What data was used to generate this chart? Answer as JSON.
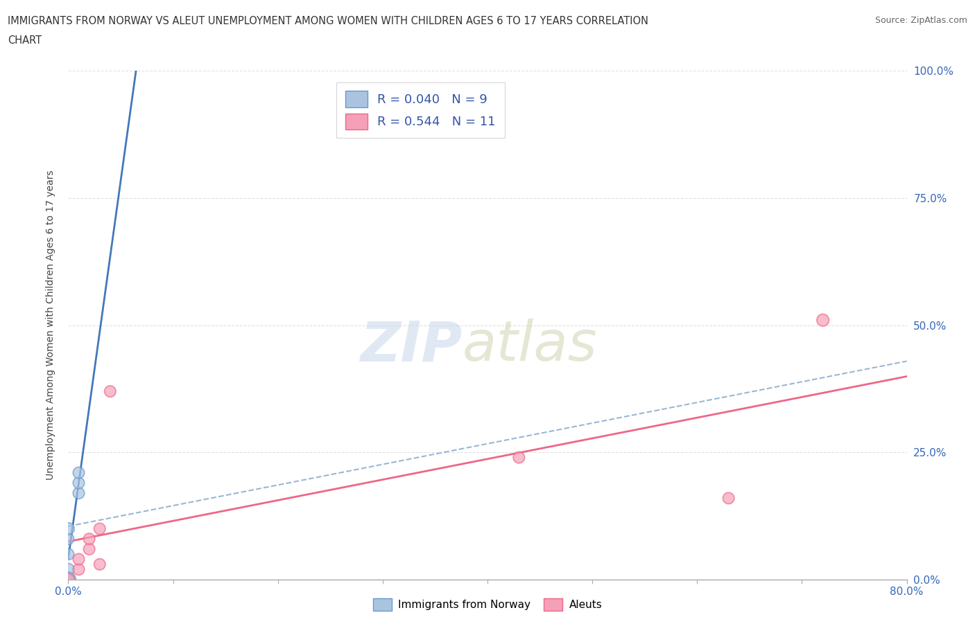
{
  "title_line1": "IMMIGRANTS FROM NORWAY VS ALEUT UNEMPLOYMENT AMONG WOMEN WITH CHILDREN AGES 6 TO 17 YEARS CORRELATION",
  "title_line2": "CHART",
  "source": "Source: ZipAtlas.com",
  "ylabel": "Unemployment Among Women with Children Ages 6 to 17 years",
  "xlim": [
    0.0,
    0.8
  ],
  "ylim": [
    0.0,
    1.0
  ],
  "xticks": [
    0.0,
    0.1,
    0.2,
    0.3,
    0.4,
    0.5,
    0.6,
    0.7,
    0.8
  ],
  "xticklabels": [
    "0.0%",
    "",
    "",
    "",
    "",
    "",
    "",
    "",
    "80.0%"
  ],
  "ytick_positions": [
    0.0,
    0.25,
    0.5,
    0.75,
    1.0
  ],
  "yticklabels_right": [
    "0.0%",
    "25.0%",
    "50.0%",
    "75.0%",
    "100.0%"
  ],
  "norway_color": "#aac4e0",
  "aleut_color": "#f4a0b8",
  "norway_edge": "#6699cc",
  "aleut_edge": "#ee6688",
  "norway_R": 0.04,
  "norway_N": 9,
  "aleut_R": 0.544,
  "aleut_N": 11,
  "background_color": "#ffffff",
  "grid_color": "#cccccc",
  "norway_x": [
    0.0,
    0.0,
    0.0,
    0.0,
    0.0,
    0.01,
    0.01,
    0.01,
    0.0
  ],
  "norway_y": [
    0.0,
    0.02,
    0.05,
    0.08,
    0.1,
    0.17,
    0.19,
    0.21,
    0.0
  ],
  "norway_size": [
    200,
    160,
    140,
    140,
    160,
    140,
    140,
    140,
    250
  ],
  "aleut_x": [
    0.0,
    0.01,
    0.01,
    0.02,
    0.02,
    0.03,
    0.03,
    0.04,
    0.43,
    0.63,
    0.72
  ],
  "aleut_y": [
    0.0,
    0.02,
    0.04,
    0.06,
    0.08,
    0.1,
    0.03,
    0.37,
    0.24,
    0.16,
    0.51
  ],
  "aleut_size": [
    160,
    140,
    140,
    140,
    140,
    140,
    140,
    140,
    140,
    140,
    160
  ],
  "trendline_norway_color": "#4477bb",
  "trendline_aleut_color": "#ee6688",
  "trendline_dashed_color": "#88aacc",
  "legend_color": "#3355aa"
}
